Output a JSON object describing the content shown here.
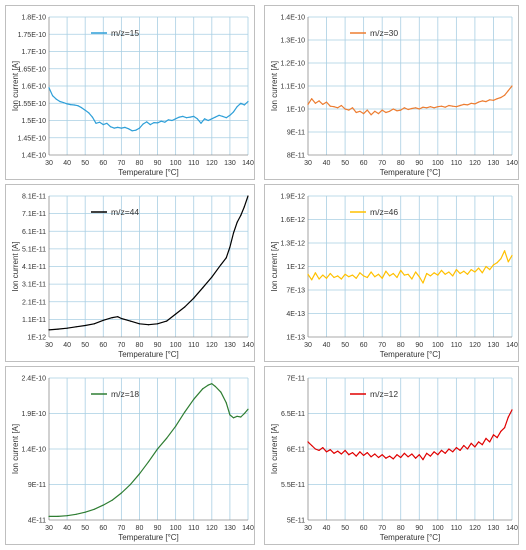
{
  "chart_data": [
    {
      "type": "line",
      "legend": "m/z=15",
      "color": "#2e9fd8",
      "xlabel": "Temperature [°C]",
      "ylabel": "Ion current [A]",
      "xticks": [
        "30",
        "40",
        "50",
        "60",
        "70",
        "80",
        "90",
        "100",
        "110",
        "120",
        "130",
        "140"
      ],
      "yticks": [
        "1.4E-10",
        "1.45E-10",
        "1.5E-10",
        "1.55E-10",
        "1.6E-10",
        "1.65E-10",
        "1.7E-10",
        "1.75E-10",
        "1.8E-10"
      ],
      "xlim": [
        30,
        140
      ],
      "ylim": [
        1.4e-10,
        1.8e-10
      ],
      "legend_position": "top-left",
      "grid": true,
      "x": [
        30,
        32,
        34,
        36,
        38,
        40,
        42,
        44,
        46,
        48,
        50,
        52,
        54,
        56,
        58,
        60,
        62,
        64,
        66,
        68,
        70,
        72,
        74,
        76,
        78,
        80,
        82,
        84,
        86,
        88,
        90,
        92,
        94,
        96,
        98,
        100,
        102,
        104,
        106,
        108,
        110,
        112,
        114,
        116,
        118,
        120,
        122,
        124,
        126,
        128,
        130,
        132,
        134,
        136,
        138,
        140
      ],
      "values": [
        1.595e-10,
        1.572e-10,
        1.562e-10,
        1.555e-10,
        1.552e-10,
        1.548e-10,
        1.546e-10,
        1.545e-10,
        1.543e-10,
        1.537e-10,
        1.53e-10,
        1.522e-10,
        1.51e-10,
        1.492e-10,
        1.495e-10,
        1.488e-10,
        1.492e-10,
        1.482e-10,
        1.478e-10,
        1.48e-10,
        1.478e-10,
        1.48e-10,
        1.476e-10,
        1.47e-10,
        1.472e-10,
        1.478e-10,
        1.49e-10,
        1.496e-10,
        1.488e-10,
        1.494e-10,
        1.493e-10,
        1.498e-10,
        1.495e-10,
        1.502e-10,
        1.5e-10,
        1.505e-10,
        1.51e-10,
        1.512e-10,
        1.508e-10,
        1.51e-10,
        1.512e-10,
        1.505e-10,
        1.492e-10,
        1.505e-10,
        1.5e-10,
        1.505e-10,
        1.51e-10,
        1.515e-10,
        1.512e-10,
        1.508e-10,
        1.515e-10,
        1.525e-10,
        1.54e-10,
        1.55e-10,
        1.545e-10,
        1.555e-10
      ]
    },
    {
      "type": "line",
      "legend": "m/z=30",
      "color": "#ed7d31",
      "xlabel": "Temperature [°C]",
      "ylabel": "Ion current [A]",
      "xticks": [
        "30",
        "40",
        "50",
        "60",
        "70",
        "80",
        "90",
        "100",
        "110",
        "120",
        "130",
        "140"
      ],
      "yticks": [
        "8E-11",
        "9E-11",
        "1E-10",
        "1.1E-10",
        "1.2E-10",
        "1.3E-10",
        "1.4E-10"
      ],
      "xlim": [
        30,
        140
      ],
      "ylim": [
        8e-11,
        1.4e-10
      ],
      "legend_position": "top-left",
      "grid": true,
      "x": [
        30,
        32,
        34,
        36,
        38,
        40,
        42,
        44,
        46,
        48,
        50,
        52,
        54,
        56,
        58,
        60,
        62,
        64,
        66,
        68,
        70,
        72,
        74,
        76,
        78,
        80,
        82,
        84,
        86,
        88,
        90,
        92,
        94,
        96,
        98,
        100,
        102,
        104,
        106,
        108,
        110,
        112,
        114,
        116,
        118,
        120,
        122,
        124,
        126,
        128,
        130,
        132,
        134,
        136,
        138,
        140
      ],
      "values": [
        1.02e-10,
        1.045e-10,
        1.025e-10,
        1.035e-10,
        1.02e-10,
        1.03e-10,
        1.012e-10,
        1.01e-10,
        1.005e-10,
        1.015e-10,
        1e-10,
        9.95e-11,
        1.005e-10,
        9.85e-11,
        9.9e-11,
        9.8e-11,
        9.95e-11,
        9.75e-11,
        9.9e-11,
        9.8e-11,
        9.95e-11,
        9.85e-11,
        9.9e-11,
        1e-10,
        9.92e-11,
        9.95e-11,
        1.005e-10,
        9.98e-11,
        1.002e-10,
        1.005e-10,
        1e-10,
        1.008e-10,
        1.005e-10,
        1.01e-10,
        1.005e-10,
        1.01e-10,
        1.012e-10,
        1.008e-10,
        1.015e-10,
        1.012e-10,
        1.01e-10,
        1.015e-10,
        1.02e-10,
        1.018e-10,
        1.025e-10,
        1.022e-10,
        1.03e-10,
        1.035e-10,
        1.032e-10,
        1.04e-10,
        1.038e-10,
        1.045e-10,
        1.05e-10,
        1.06e-10,
        1.08e-10,
        1.1e-10
      ]
    },
    {
      "type": "line",
      "legend": "m/z=44",
      "color": "#000000",
      "xlabel": "Temperature [°C]",
      "ylabel": "Ion current [A]",
      "xticks": [
        "30",
        "40",
        "50",
        "60",
        "70",
        "80",
        "90",
        "100",
        "110",
        "120",
        "130",
        "140"
      ],
      "yticks": [
        "1E-12",
        "1.1E-11",
        "2.1E-11",
        "3.1E-11",
        "4.1E-11",
        "5.1E-11",
        "6.1E-11",
        "7.1E-11",
        "8.1E-11"
      ],
      "xlim": [
        30,
        140
      ],
      "ylim": [
        1e-12,
        8.1e-11
      ],
      "legend_position": "top-left",
      "grid": true,
      "x": [
        30,
        35,
        40,
        45,
        50,
        55,
        60,
        65,
        68,
        70,
        75,
        80,
        85,
        90,
        95,
        100,
        105,
        110,
        115,
        120,
        125,
        128,
        130,
        132,
        134,
        136,
        138,
        140
      ],
      "values": [
        5e-12,
        5.5e-12,
        6e-12,
        6.8e-12,
        7.5e-12,
        8.5e-12,
        1.05e-11,
        1.2e-11,
        1.25e-11,
        1.15e-11,
        1e-11,
        8.5e-12,
        8e-12,
        8.5e-12,
        1e-11,
        1.4e-11,
        1.8e-11,
        2.3e-11,
        2.9e-11,
        3.5e-11,
        4.2e-11,
        4.6e-11,
        5.2e-11,
        6e-11,
        6.6e-11,
        7e-11,
        7.5e-11,
        8.1e-11
      ]
    },
    {
      "type": "line",
      "legend": "m/z=46",
      "color": "#ffc000",
      "xlabel": "Temperature [°C]",
      "ylabel": "Ion current [A]",
      "xticks": [
        "30",
        "40",
        "50",
        "60",
        "70",
        "80",
        "90",
        "100",
        "110",
        "120",
        "130",
        "140"
      ],
      "yticks": [
        "1E-13",
        "4E-13",
        "7E-13",
        "1E-12",
        "1.3E-12",
        "1.6E-12",
        "1.9E-12"
      ],
      "xlim": [
        30,
        140
      ],
      "ylim": [
        1e-13,
        1.9e-12
      ],
      "legend_position": "top-left",
      "grid": true,
      "x": [
        30,
        32,
        34,
        36,
        38,
        40,
        42,
        44,
        46,
        48,
        50,
        52,
        54,
        56,
        58,
        60,
        62,
        64,
        66,
        68,
        70,
        72,
        74,
        76,
        78,
        80,
        82,
        84,
        86,
        88,
        90,
        92,
        94,
        96,
        98,
        100,
        102,
        104,
        106,
        108,
        110,
        112,
        114,
        116,
        118,
        120,
        122,
        124,
        126,
        128,
        130,
        132,
        134,
        136,
        138,
        140
      ],
      "values": [
        9e-13,
        8.3e-13,
        9.2e-13,
        8.4e-13,
        8.9e-13,
        8.5e-13,
        9.1e-13,
        8.6e-13,
        8.8e-13,
        8.4e-13,
        9e-13,
        8.7e-13,
        8.9e-13,
        8.5e-13,
        9.2e-13,
        8.8e-13,
        8.6e-13,
        9.3e-13,
        8.7e-13,
        9e-13,
        8.5e-13,
        9.4e-13,
        8.8e-13,
        9.1e-13,
        8.6e-13,
        9.5e-13,
        8.9e-13,
        9e-13,
        8.4e-13,
        9.3e-13,
        8.7e-13,
        7.9e-13,
        9.1e-13,
        8.8e-13,
        9.2e-13,
        8.9e-13,
        9.5e-13,
        9e-13,
        9.3e-13,
        8.8e-13,
        9.6e-13,
        9.1e-13,
        9.4e-13,
        9e-13,
        9.6e-13,
        9.3e-13,
        9.8e-13,
        9.2e-13,
        1e-12,
        9.6e-13,
        1.02e-12,
        1.05e-12,
        1.1e-12,
        1.2e-12,
        1.06e-12,
        1.14e-12
      ]
    },
    {
      "type": "line",
      "legend": "m/z=18",
      "color": "#2e7d32",
      "xlabel": "Temperature [°C]",
      "ylabel": "Ion current [A]",
      "xticks": [
        "30",
        "40",
        "50",
        "60",
        "70",
        "80",
        "90",
        "100",
        "110",
        "120",
        "130",
        "140"
      ],
      "yticks": [
        "4E-11",
        "9E-11",
        "1.4E-10",
        "1.9E-10",
        "2.4E-10"
      ],
      "xlim": [
        30,
        140
      ],
      "ylim": [
        4e-11,
        2.4e-10
      ],
      "legend_position": "top-left",
      "grid": true,
      "x": [
        30,
        35,
        40,
        45,
        50,
        55,
        60,
        65,
        70,
        75,
        80,
        85,
        90,
        95,
        100,
        105,
        110,
        115,
        118,
        120,
        122,
        125,
        128,
        130,
        132,
        134,
        136,
        138,
        140
      ],
      "values": [
        4.5e-11,
        4.5e-11,
        4.6e-11,
        4.8e-11,
        5.1e-11,
        5.5e-11,
        6.1e-11,
        6.8e-11,
        7.8e-11,
        9e-11,
        1.05e-10,
        1.22e-10,
        1.4e-10,
        1.55e-10,
        1.72e-10,
        1.92e-10,
        2.1e-10,
        2.25e-10,
        2.3e-10,
        2.32e-10,
        2.28e-10,
        2.2e-10,
        2.05e-10,
        1.88e-10,
        1.84e-10,
        1.86e-10,
        1.85e-10,
        1.9e-10,
        1.96e-10
      ]
    },
    {
      "type": "line",
      "legend": "m/z=12",
      "color": "#e00000",
      "xlabel": "Temperature [°C]",
      "ylabel": "Ion current [A]",
      "xticks": [
        "30",
        "40",
        "50",
        "60",
        "70",
        "80",
        "90",
        "100",
        "110",
        "120",
        "130",
        "140"
      ],
      "yticks": [
        "5E-11",
        "5.5E-11",
        "6E-11",
        "6.5E-11",
        "7E-11"
      ],
      "xlim": [
        30,
        140
      ],
      "ylim": [
        5e-11,
        7e-11
      ],
      "legend_position": "top-left",
      "grid": true,
      "x": [
        30,
        32,
        34,
        36,
        38,
        40,
        42,
        44,
        46,
        48,
        50,
        52,
        54,
        56,
        58,
        60,
        62,
        64,
        66,
        68,
        70,
        72,
        74,
        76,
        78,
        80,
        82,
        84,
        86,
        88,
        90,
        92,
        94,
        96,
        98,
        100,
        102,
        104,
        106,
        108,
        110,
        112,
        114,
        116,
        118,
        120,
        122,
        124,
        126,
        128,
        130,
        132,
        134,
        136,
        138,
        140
      ],
      "values": [
        6.1e-11,
        6.05e-11,
        6e-11,
        5.98e-11,
        6.02e-11,
        5.96e-11,
        5.99e-11,
        5.94e-11,
        5.97e-11,
        5.93e-11,
        5.98e-11,
        5.92e-11,
        5.95e-11,
        5.9e-11,
        5.96e-11,
        5.91e-11,
        5.95e-11,
        5.89e-11,
        5.93e-11,
        5.88e-11,
        5.92e-11,
        5.87e-11,
        5.9e-11,
        5.86e-11,
        5.92e-11,
        5.88e-11,
        5.94e-11,
        5.89e-11,
        5.93e-11,
        5.87e-11,
        5.92e-11,
        5.85e-11,
        5.94e-11,
        5.9e-11,
        5.96e-11,
        5.92e-11,
        5.98e-11,
        5.94e-11,
        6e-11,
        5.96e-11,
        6.02e-11,
        5.98e-11,
        6.05e-11,
        6e-11,
        6.08e-11,
        6.03e-11,
        6.1e-11,
        6.06e-11,
        6.15e-11,
        6.1e-11,
        6.2e-11,
        6.16e-11,
        6.25e-11,
        6.3e-11,
        6.45e-11,
        6.55e-11
      ]
    }
  ]
}
